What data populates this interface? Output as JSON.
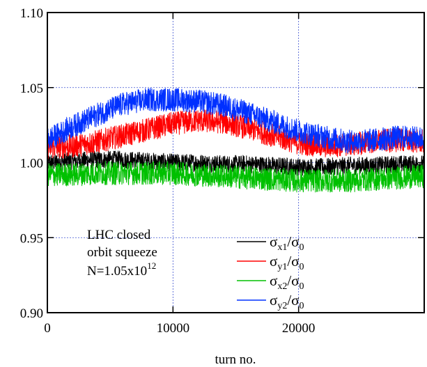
{
  "chart_data": {
    "type": "line",
    "title": "",
    "xlabel": "turn no.",
    "ylabel": "",
    "xlim": [
      0,
      30000
    ],
    "ylim": [
      0.9,
      1.1
    ],
    "x_ticks": [
      0,
      10000,
      20000
    ],
    "x_tick_labels": [
      "0",
      "10000",
      "20000"
    ],
    "y_ticks": [
      0.9,
      0.95,
      1.0,
      1.05,
      1.1
    ],
    "y_tick_labels": [
      "0.90",
      "0.95",
      "1.00",
      "1.05",
      "1.10"
    ],
    "grid": true,
    "legend_position": "bottom-right",
    "annotation": {
      "line1": "LHC closed",
      "line2": "orbit squeeze",
      "line3_base": "N=1.05x10",
      "line3_sup": "12"
    },
    "series": [
      {
        "name": "σx1/σ0",
        "label_sym": "σ",
        "label_sub1": "x1",
        "label_sep": "/",
        "label_sym2": "σ",
        "label_sub2": "0",
        "color": "#000000",
        "noise": 0.006,
        "x": [
          0,
          2000,
          4000,
          6000,
          8000,
          10000,
          12000,
          14000,
          16000,
          18000,
          20000,
          22000,
          24000,
          26000,
          28000,
          30000
        ],
        "y": [
          1.0,
          1.001,
          1.002,
          1.002,
          1.001,
          1.0,
          1.0,
          0.999,
          0.999,
          0.998,
          0.997,
          0.997,
          0.998,
          0.998,
          0.999,
          0.999
        ]
      },
      {
        "name": "σy1/σ0",
        "label_sym": "σ",
        "label_sub1": "y1",
        "label_sep": "/",
        "label_sym2": "σ",
        "label_sub2": "0",
        "color": "#ff0000",
        "noise": 0.008,
        "x": [
          0,
          2000,
          4000,
          6000,
          8000,
          10000,
          12000,
          14000,
          16000,
          18000,
          20000,
          22000,
          24000,
          26000,
          28000,
          30000
        ],
        "y": [
          1.01,
          1.011,
          1.014,
          1.018,
          1.022,
          1.026,
          1.028,
          1.027,
          1.023,
          1.018,
          1.013,
          1.011,
          1.012,
          1.014,
          1.015,
          1.014
        ]
      },
      {
        "name": "σx2/σ0",
        "label_sym": "σ",
        "label_sub1": "x2",
        "label_sep": "/",
        "label_sym2": "σ",
        "label_sub2": "0",
        "color": "#00c000",
        "noise": 0.008,
        "x": [
          0,
          2000,
          4000,
          6000,
          8000,
          10000,
          12000,
          14000,
          16000,
          18000,
          20000,
          22000,
          24000,
          26000,
          28000,
          30000
        ],
        "y": [
          0.992,
          0.992,
          0.993,
          0.993,
          0.993,
          0.993,
          0.992,
          0.991,
          0.99,
          0.989,
          0.988,
          0.988,
          0.988,
          0.989,
          0.99,
          0.991
        ]
      },
      {
        "name": "σy2/σ0",
        "label_sym": "σ",
        "label_sub1": "y2",
        "label_sep": "/",
        "label_sym2": "σ",
        "label_sub2": "0",
        "color": "#0030ff",
        "noise": 0.008,
        "x": [
          0,
          2000,
          4000,
          6000,
          8000,
          10000,
          12000,
          14000,
          16000,
          18000,
          20000,
          22000,
          24000,
          26000,
          28000,
          30000
        ],
        "y": [
          1.015,
          1.024,
          1.032,
          1.039,
          1.042,
          1.042,
          1.041,
          1.038,
          1.033,
          1.027,
          1.021,
          1.017,
          1.014,
          1.015,
          1.017,
          1.016
        ]
      }
    ]
  }
}
